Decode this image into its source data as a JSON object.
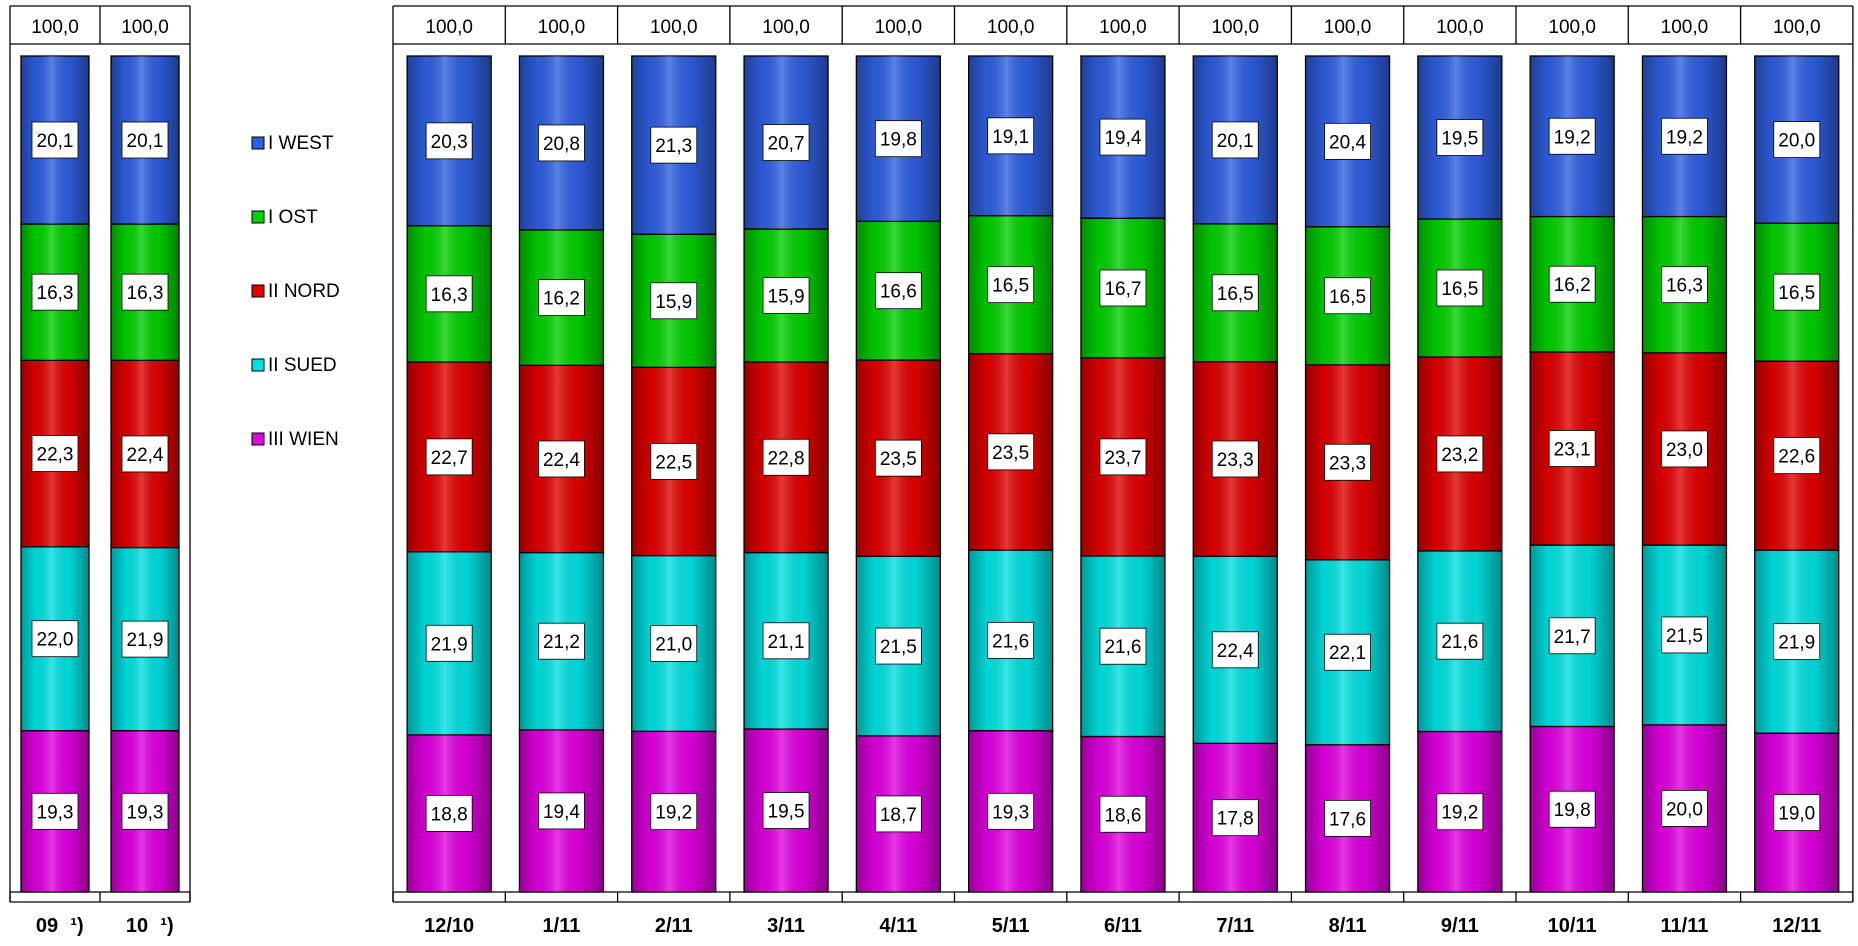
{
  "chart_data": {
    "type": "bar",
    "stacked": true,
    "total_labels": [
      "100,0",
      "100,0",
      "100,0",
      "100,0",
      "100,0",
      "100,0",
      "100,0",
      "100,0",
      "100,0",
      "100,0",
      "100,0",
      "100,0",
      "100,0",
      "100,0",
      "100,0"
    ],
    "categories": [
      "09",
      "10",
      "12/10",
      "1/11",
      "2/11",
      "3/11",
      "4/11",
      "5/11",
      "6/11",
      "7/11",
      "8/11",
      "9/11",
      "10/11",
      "11/11",
      "12/11"
    ],
    "category_footnote": "¹)",
    "footnoted_categories": [
      "09",
      "10"
    ],
    "groups": [
      [
        "09",
        "10"
      ],
      [
        "12/10",
        "1/11",
        "2/11",
        "3/11",
        "4/11",
        "5/11",
        "6/11",
        "7/11",
        "8/11",
        "9/11",
        "10/11",
        "11/11",
        "12/11"
      ]
    ],
    "ylim": [
      0,
      100
    ],
    "series": [
      {
        "name": "III WIEN",
        "color": "#e000e0",
        "values": [
          19.3,
          19.3,
          18.8,
          19.4,
          19.2,
          19.5,
          18.7,
          19.3,
          18.6,
          17.8,
          17.6,
          19.2,
          19.8,
          20.0,
          19.0
        ],
        "labels": [
          "19,3",
          "19,3",
          "18,8",
          "19,4",
          "19,2",
          "19,5",
          "18,7",
          "19,3",
          "18,6",
          "17,8",
          "17,6",
          "19,2",
          "19,8",
          "20,0",
          "19,0"
        ]
      },
      {
        "name": "II SUED",
        "color": "#00e0e0",
        "values": [
          22.0,
          21.9,
          21.9,
          21.2,
          21.0,
          21.1,
          21.5,
          21.6,
          21.6,
          22.4,
          22.1,
          21.6,
          21.7,
          21.5,
          21.9
        ],
        "labels": [
          "22,0",
          "21,9",
          "21,9",
          "21,2",
          "21,0",
          "21,1",
          "21,5",
          "21,6",
          "21,6",
          "22,4",
          "22,1",
          "21,6",
          "21,7",
          "21,5",
          "21,9"
        ]
      },
      {
        "name": "II NORD",
        "color": "#e00000",
        "values": [
          22.3,
          22.4,
          22.7,
          22.4,
          22.5,
          22.8,
          23.5,
          23.5,
          23.7,
          23.3,
          23.3,
          23.2,
          23.1,
          23.0,
          22.6
        ],
        "labels": [
          "22,3",
          "22,4",
          "22,7",
          "22,4",
          "22,5",
          "22,8",
          "23,5",
          "23,5",
          "23,7",
          "23,3",
          "23,3",
          "23,2",
          "23,1",
          "23,0",
          "22,6"
        ]
      },
      {
        "name": "I OST",
        "color": "#00d000",
        "values": [
          16.3,
          16.3,
          16.3,
          16.2,
          15.9,
          15.9,
          16.6,
          16.5,
          16.7,
          16.5,
          16.5,
          16.5,
          16.2,
          16.3,
          16.5
        ],
        "labels": [
          "16,3",
          "16,3",
          "16,3",
          "16,2",
          "15,9",
          "15,9",
          "16,6",
          "16,5",
          "16,7",
          "16,5",
          "16,5",
          "16,5",
          "16,2",
          "16,3",
          "16,5"
        ]
      },
      {
        "name": "I WEST",
        "color": "#2f5fe0",
        "values": [
          20.1,
          20.1,
          20.3,
          20.8,
          21.3,
          20.7,
          19.8,
          19.1,
          19.4,
          20.1,
          20.4,
          19.5,
          19.2,
          19.2,
          20.0
        ],
        "labels": [
          "20,1",
          "20,1",
          "20,3",
          "20,8",
          "21,3",
          "20,7",
          "19,8",
          "19,1",
          "19,4",
          "20,1",
          "20,4",
          "19,5",
          "19,2",
          "19,2",
          "20,0"
        ]
      }
    ],
    "legend": {
      "position": "left, between groups",
      "order": [
        "I WEST",
        "I OST",
        "II NORD",
        "II SUED",
        "III WIEN"
      ]
    }
  }
}
